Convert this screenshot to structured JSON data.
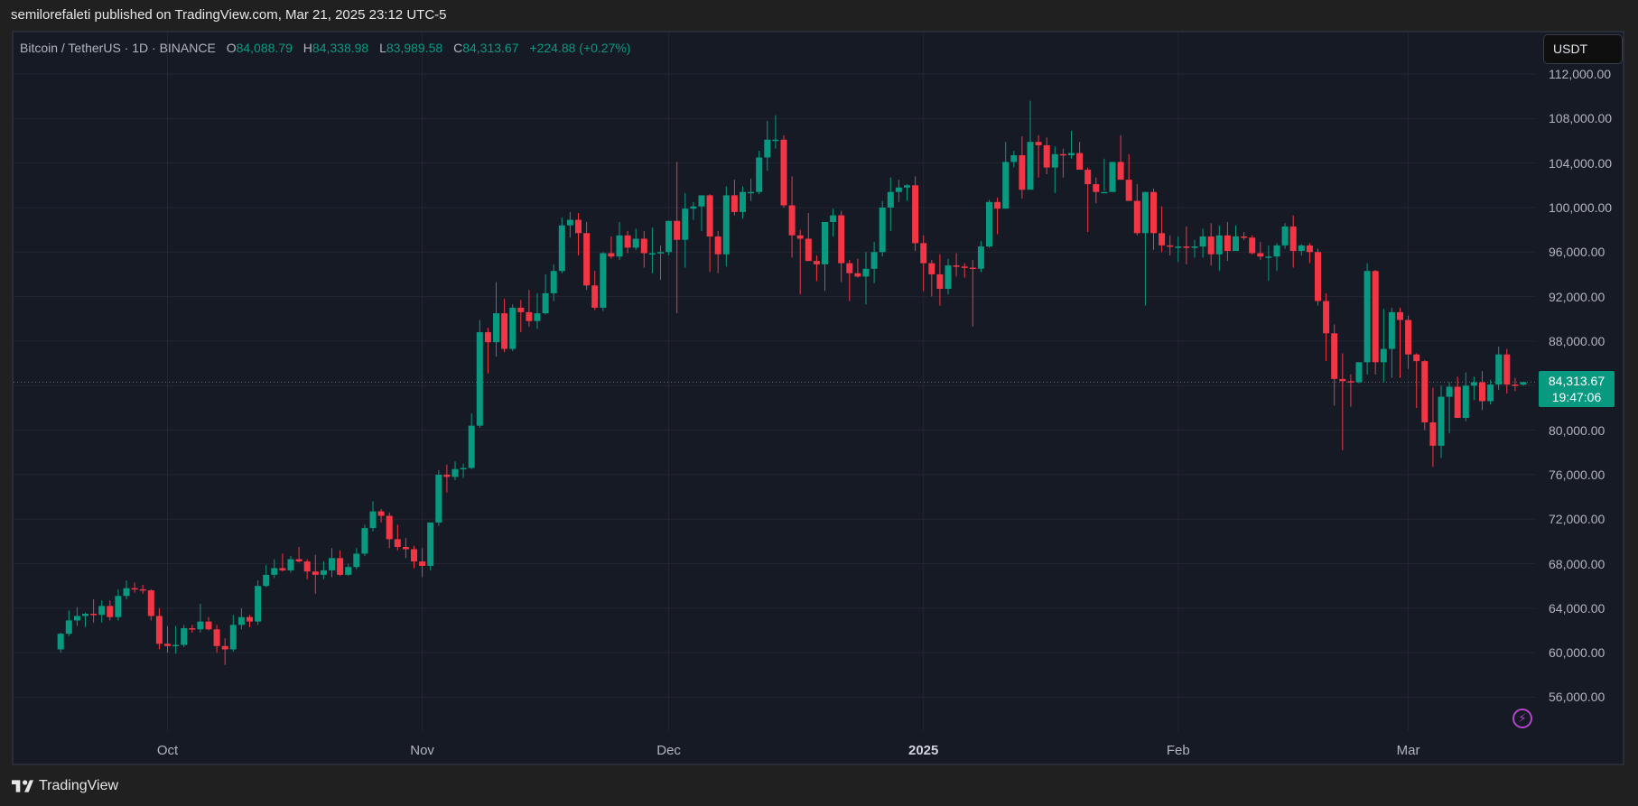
{
  "header": {
    "published_text": "semilorefaleti published on TradingView.com, Mar 21, 2025 23:12 UTC-5"
  },
  "legend": {
    "symbol": "Bitcoin / TetherUS · 1D · BINANCE",
    "open_label": "O",
    "open": "84,088.79",
    "high_label": "H",
    "high": "84,338.98",
    "low_label": "L",
    "low": "83,989.58",
    "close_label": "C",
    "close": "84,313.67",
    "change": "+224.88 (+0.27%)"
  },
  "currency_button": "USDT",
  "last_price": {
    "price": "84,313.67",
    "countdown": "19:47:06"
  },
  "footer": {
    "brand": "TradingView"
  },
  "icons": {
    "logo": "tradingview-logo-icon",
    "bolt": "lightning-icon"
  },
  "colors": {
    "up": "#089981",
    "down": "#f23645",
    "bg": "#161a25",
    "grid": "#232632",
    "bolt": "#b245c9"
  },
  "chart_data": {
    "type": "candlestick",
    "title": "Bitcoin / TetherUS · 1D · BINANCE",
    "xlabel": "",
    "ylabel": "USDT",
    "ylim": [
      52000,
      114000
    ],
    "y_ticks": [
      112000,
      108000,
      104000,
      100000,
      96000,
      92000,
      88000,
      84000,
      80000,
      76000,
      72000,
      68000,
      64000,
      60000,
      56000
    ],
    "y_tick_labels": [
      "112,000.00",
      "108,000.00",
      "104,000.00",
      "100,000.00",
      "96,000.00",
      "92,000.00",
      "88,000.00",
      "84,000.00",
      "80,000.00",
      "76,000.00",
      "72,000.00",
      "68,000.00",
      "64,000.00",
      "60,000.00",
      "56,000.00"
    ],
    "x_tick_labels": [
      {
        "label": "Oct",
        "index": 13,
        "bold": false
      },
      {
        "label": "Nov",
        "index": 44,
        "bold": false
      },
      {
        "label": "Dec",
        "index": 74,
        "bold": false
      },
      {
        "label": "2025",
        "index": 105,
        "bold": true
      },
      {
        "label": "Feb",
        "index": 136,
        "bold": false
      },
      {
        "label": "Mar",
        "index": 164,
        "bold": false
      }
    ],
    "start_date": "2024-09-18",
    "end_date": "2025-03-21",
    "grid": true,
    "ohlc": [
      [
        60300,
        61800,
        60000,
        61700
      ],
      [
        61700,
        63800,
        61500,
        62900
      ],
      [
        62900,
        64100,
        62400,
        63300
      ],
      [
        63300,
        63600,
        62300,
        63500
      ],
      [
        63500,
        64800,
        62700,
        63400
      ],
      [
        63400,
        64700,
        62700,
        64200
      ],
      [
        64200,
        64700,
        62900,
        63200
      ],
      [
        63200,
        65700,
        62900,
        65100
      ],
      [
        65100,
        66500,
        64800,
        65800
      ],
      [
        65800,
        66300,
        65400,
        65700
      ],
      [
        65700,
        66100,
        65300,
        65600
      ],
      [
        65600,
        65700,
        62900,
        63300
      ],
      [
        63300,
        64000,
        60300,
        60800
      ],
      [
        60800,
        62400,
        60000,
        60600
      ],
      [
        60600,
        62400,
        59900,
        60700
      ],
      [
        60700,
        62500,
        60500,
        62200
      ],
      [
        62200,
        62500,
        61800,
        62100
      ],
      [
        62100,
        64400,
        61800,
        62800
      ],
      [
        62800,
        63200,
        62000,
        62100
      ],
      [
        62100,
        62500,
        60000,
        60600
      ],
      [
        60600,
        61300,
        58900,
        60300
      ],
      [
        60300,
        63400,
        60100,
        62500
      ],
      [
        62500,
        64000,
        62100,
        63200
      ],
      [
        63200,
        63400,
        62300,
        62800
      ],
      [
        62800,
        66500,
        62500,
        66000
      ],
      [
        66000,
        67900,
        65900,
        67000
      ],
      [
        67000,
        68400,
        66700,
        67600
      ],
      [
        67600,
        68900,
        67300,
        67400
      ],
      [
        67400,
        68700,
        67200,
        68400
      ],
      [
        68400,
        69500,
        68100,
        68200
      ],
      [
        68200,
        68400,
        66600,
        67300
      ],
      [
        67300,
        68800,
        65300,
        67000
      ],
      [
        67000,
        68200,
        66600,
        67400
      ],
      [
        67400,
        69400,
        66800,
        68500
      ],
      [
        68500,
        69200,
        66900,
        67000
      ],
      [
        67000,
        68000,
        66900,
        67700
      ],
      [
        67700,
        69400,
        67500,
        68900
      ],
      [
        68900,
        71500,
        68700,
        71200
      ],
      [
        71200,
        73600,
        70900,
        72700
      ],
      [
        72700,
        72900,
        71700,
        72300
      ],
      [
        72300,
        72600,
        69400,
        70200
      ],
      [
        70200,
        71500,
        69200,
        69500
      ],
      [
        69500,
        70300,
        68500,
        69300
      ],
      [
        69300,
        69600,
        67600,
        68200
      ],
      [
        68200,
        69400,
        66800,
        67800
      ],
      [
        67800,
        71600,
        67400,
        71700
      ],
      [
        71700,
        76400,
        71400,
        76000
      ],
      [
        76000,
        76900,
        74400,
        75800
      ],
      [
        75800,
        77200,
        75500,
        76500
      ],
      [
        76500,
        77000,
        75700,
        76600
      ],
      [
        76600,
        81500,
        76500,
        80400
      ],
      [
        80400,
        89900,
        80200,
        88800
      ],
      [
        88800,
        89200,
        85100,
        87900
      ],
      [
        87900,
        93300,
        86600,
        90500
      ],
      [
        90500,
        91800,
        87000,
        87300
      ],
      [
        87300,
        91300,
        87100,
        91000
      ],
      [
        91000,
        91700,
        88800,
        90600
      ],
      [
        90600,
        92600,
        89300,
        89800
      ],
      [
        89800,
        92300,
        89100,
        90500
      ],
      [
        90500,
        94000,
        90400,
        92300
      ],
      [
        92300,
        94900,
        91600,
        94300
      ],
      [
        94300,
        99100,
        94100,
        98400
      ],
      [
        98400,
        99600,
        97300,
        98900
      ],
      [
        98900,
        99500,
        95700,
        97700
      ],
      [
        97700,
        98700,
        92600,
        93000
      ],
      [
        93000,
        94300,
        90800,
        91000
      ],
      [
        91000,
        96000,
        90700,
        95900
      ],
      [
        95900,
        97400,
        95400,
        95600
      ],
      [
        95600,
        98700,
        95300,
        97500
      ],
      [
        97500,
        97900,
        95900,
        96400
      ],
      [
        96400,
        98100,
        96200,
        97200
      ],
      [
        97200,
        97900,
        94600,
        95900
      ],
      [
        95900,
        98200,
        94100,
        95900
      ],
      [
        95900,
        96600,
        93500,
        96000
      ],
      [
        96000,
        98800,
        95700,
        98800
      ],
      [
        98800,
        104100,
        90500,
        97100
      ],
      [
        97100,
        101300,
        94600,
        99900
      ],
      [
        99900,
        100500,
        98900,
        100100
      ],
      [
        100100,
        101000,
        97900,
        101100
      ],
      [
        101100,
        101200,
        94200,
        97400
      ],
      [
        97400,
        97900,
        94100,
        95800
      ],
      [
        95800,
        101900,
        94700,
        101100
      ],
      [
        101100,
        102500,
        99300,
        99600
      ],
      [
        99600,
        101900,
        99000,
        101400
      ],
      [
        101400,
        102600,
        100600,
        101400
      ],
      [
        101400,
        105100,
        101200,
        104500
      ],
      [
        104500,
        107800,
        103300,
        106100
      ],
      [
        106100,
        108300,
        105300,
        106100
      ],
      [
        106100,
        106500,
        100000,
        100200
      ],
      [
        100200,
        102800,
        95500,
        97500
      ],
      [
        97500,
        98000,
        92200,
        97200
      ],
      [
        97200,
        99500,
        95200,
        95200
      ],
      [
        95200,
        95700,
        93400,
        94900
      ],
      [
        94900,
        97300,
        92500,
        98700
      ],
      [
        98700,
        99900,
        97400,
        99300
      ],
      [
        99300,
        99700,
        93300,
        95000
      ],
      [
        95000,
        95300,
        91600,
        94100
      ],
      [
        94100,
        95400,
        93700,
        93800
      ],
      [
        93800,
        96000,
        91300,
        94500
      ],
      [
        94500,
        96900,
        93200,
        96000
      ],
      [
        96000,
        100600,
        95600,
        100000
      ],
      [
        100000,
        102700,
        97900,
        101400
      ],
      [
        101400,
        102500,
        100500,
        101800
      ],
      [
        101800,
        102100,
        100600,
        102000
      ],
      [
        102000,
        102800,
        96100,
        96800
      ],
      [
        96800,
        97500,
        92500,
        95000
      ],
      [
        95000,
        95300,
        92000,
        94000
      ],
      [
        94000,
        95800,
        91200,
        92700
      ],
      [
        92700,
        95400,
        92200,
        94800
      ],
      [
        94800,
        95900,
        93800,
        94700
      ],
      [
        94700,
        95000,
        93700,
        94600
      ],
      [
        94600,
        95300,
        89300,
        94500
      ],
      [
        94500,
        97000,
        94200,
        96500
      ],
      [
        96500,
        100700,
        96400,
        100500
      ],
      [
        100500,
        100900,
        97600,
        99900
      ],
      [
        99900,
        105900,
        99900,
        104100
      ],
      [
        104100,
        105100,
        103600,
        104700
      ],
      [
        104700,
        106400,
        100800,
        101600
      ],
      [
        101600,
        109600,
        101700,
        105900
      ],
      [
        105900,
        106500,
        102700,
        105600
      ],
      [
        105600,
        106300,
        103000,
        103600
      ],
      [
        103600,
        105500,
        101300,
        104800
      ],
      [
        104800,
        105300,
        102700,
        104700
      ],
      [
        104700,
        106900,
        104400,
        104900
      ],
      [
        104900,
        105900,
        103500,
        103400
      ],
      [
        103400,
        103600,
        97800,
        102100
      ],
      [
        102100,
        102700,
        100400,
        101400
      ],
      [
        101400,
        104400,
        101500,
        101400
      ],
      [
        101400,
        103300,
        101500,
        104100
      ],
      [
        104100,
        106500,
        103200,
        102500
      ],
      [
        102500,
        104800,
        101400,
        100600
      ],
      [
        100600,
        102100,
        97500,
        97700
      ],
      [
        97700,
        101400,
        91200,
        101400
      ],
      [
        101400,
        101700,
        96200,
        97700
      ],
      [
        97700,
        100100,
        96000,
        96600
      ],
      [
        96600,
        97500,
        95700,
        96500
      ],
      [
        96500,
        97400,
        95100,
        96500
      ],
      [
        96500,
        98300,
        94900,
        96400
      ],
      [
        96400,
        97100,
        95500,
        96500
      ],
      [
        96500,
        98100,
        95500,
        97400
      ],
      [
        97400,
        98600,
        94800,
        95800
      ],
      [
        95800,
        98400,
        94300,
        97500
      ],
      [
        97500,
        98700,
        95200,
        96100
      ],
      [
        96100,
        98400,
        96500,
        97400
      ],
      [
        97400,
        97800,
        97100,
        97300
      ],
      [
        97300,
        97500,
        95800,
        95900
      ],
      [
        95900,
        96900,
        95300,
        95600
      ],
      [
        95600,
        96600,
        93400,
        95600
      ],
      [
        95600,
        96800,
        94300,
        96600
      ],
      [
        96600,
        98600,
        96300,
        98300
      ],
      [
        98300,
        99300,
        94600,
        96100
      ],
      [
        96100,
        96700,
        95700,
        96600
      ],
      [
        96600,
        96800,
        95000,
        96000
      ],
      [
        96000,
        96300,
        91200,
        91600
      ],
      [
        91600,
        92300,
        86200,
        88700
      ],
      [
        88700,
        89500,
        82200,
        84600
      ],
      [
        84600,
        86900,
        78200,
        84400
      ],
      [
        84400,
        85000,
        82100,
        84300
      ],
      [
        84300,
        85700,
        84200,
        86100
      ],
      [
        86100,
        95000,
        85000,
        94300
      ],
      [
        94300,
        94400,
        85000,
        86100
      ],
      [
        86100,
        90900,
        84300,
        87300
      ],
      [
        87300,
        91000,
        84700,
        90600
      ],
      [
        90600,
        91000,
        84700,
        89900
      ],
      [
        89900,
        90300,
        85500,
        86800
      ],
      [
        86800,
        86900,
        82000,
        86200
      ],
      [
        86200,
        86300,
        80000,
        80700
      ],
      [
        80700,
        83800,
        76700,
        78600
      ],
      [
        78600,
        84000,
        77500,
        83000
      ],
      [
        83000,
        84300,
        79700,
        83900
      ],
      [
        83900,
        84800,
        82500,
        81100
      ],
      [
        81100,
        85200,
        80800,
        84000
      ],
      [
        84000,
        84800,
        82700,
        84300
      ],
      [
        84300,
        85300,
        81800,
        82600
      ],
      [
        82600,
        84500,
        82300,
        84100
      ],
      [
        84100,
        87500,
        83600,
        86800
      ],
      [
        86800,
        87300,
        83300,
        84100
      ],
      [
        84100,
        84700,
        83500,
        84000
      ],
      [
        84090,
        84340,
        83990,
        84314
      ]
    ]
  }
}
